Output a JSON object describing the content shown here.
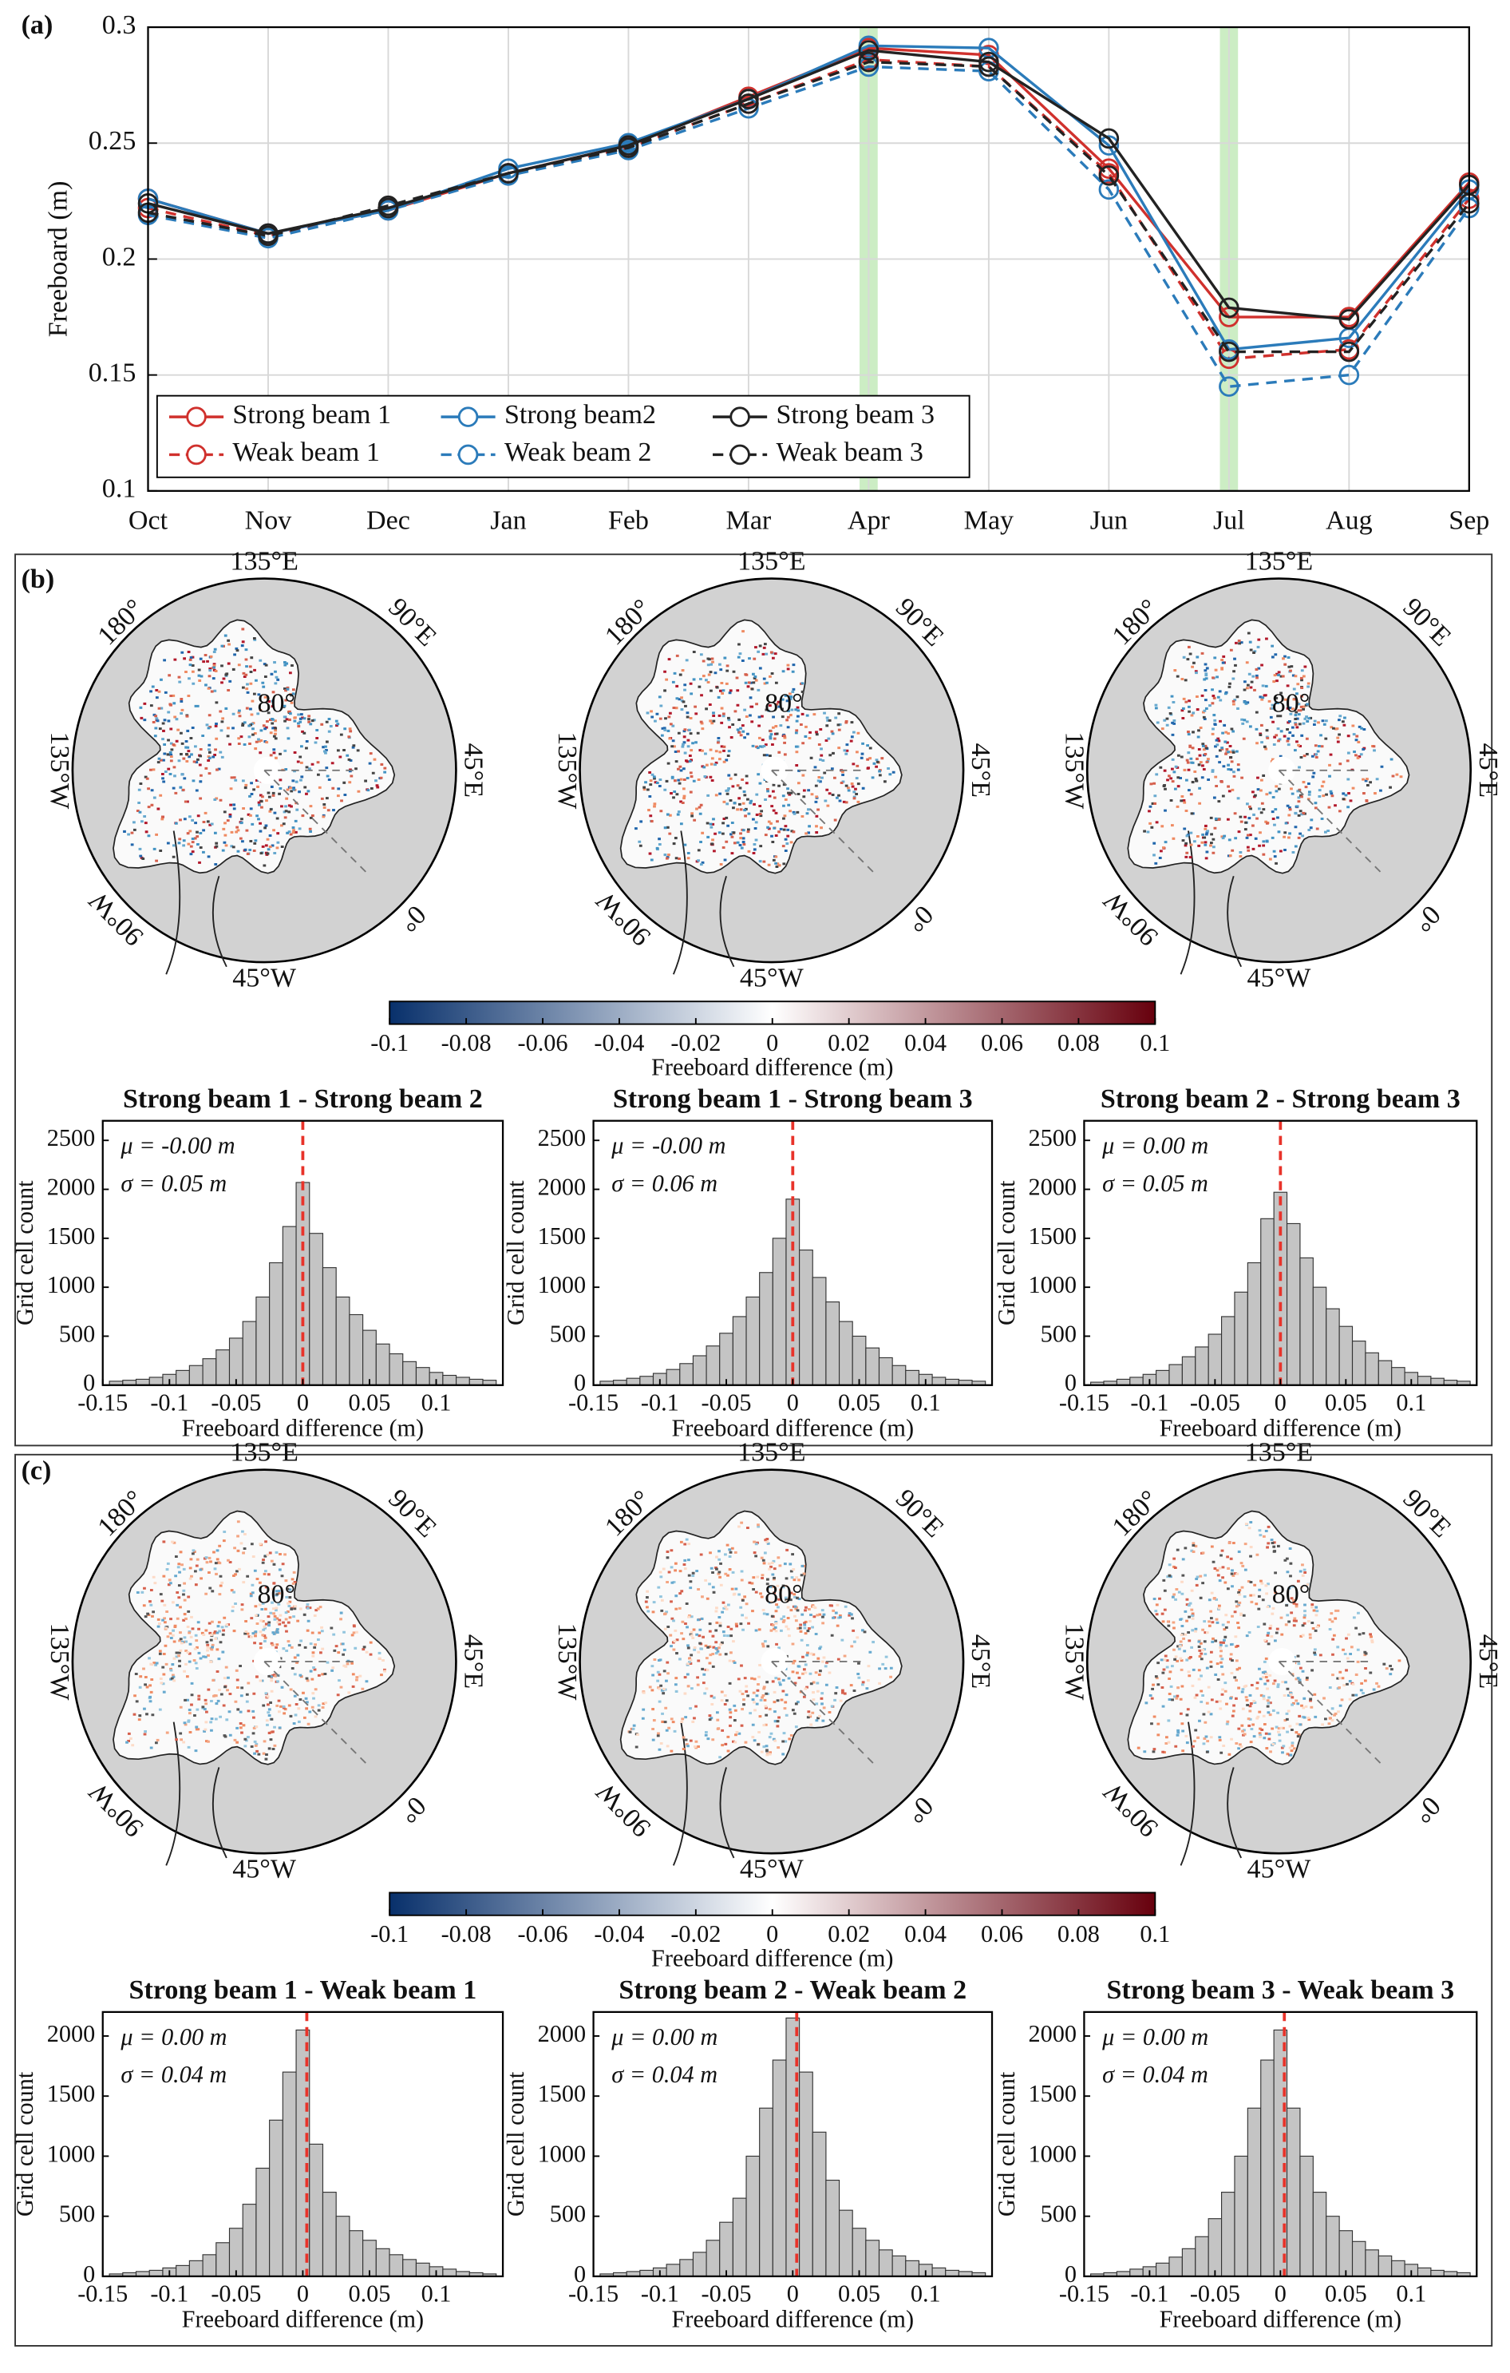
{
  "map_labels": {
    "e135": "135°E",
    "e90": "90°E",
    "e45": "45°E",
    "zero": "0°",
    "w45": "45°W",
    "w90": "90°W",
    "w135": "135°W",
    "d180": "180°",
    "lat80": "80°"
  },
  "chart_data": [
    {
      "type": "line",
      "panel_label": "(a)",
      "ylabel": "Freeboard (m)",
      "categories": [
        "Oct",
        "Nov",
        "Dec",
        "Jan",
        "Feb",
        "Mar",
        "Apr",
        "May",
        "Jun",
        "Jul",
        "Aug",
        "Sep"
      ],
      "ylim": [
        0.1,
        0.3
      ],
      "yticks": [
        0.1,
        0.15,
        0.2,
        0.25,
        0.3
      ],
      "grid": true,
      "legend": "bottom-left",
      "highlight": [
        "Apr",
        "Jul"
      ],
      "highlight_color": "#bfe8b5",
      "series": [
        {
          "name": "Strong beam 1",
          "color": "#d0312d",
          "dashed": false,
          "values": [
            0.226,
            0.211,
            0.221,
            0.237,
            0.249,
            0.27,
            0.291,
            0.288,
            0.239,
            0.175,
            0.175,
            0.233
          ]
        },
        {
          "name": "Weak beam 1",
          "color": "#d0312d",
          "dashed": true,
          "values": [
            0.222,
            0.21,
            0.222,
            0.237,
            0.248,
            0.267,
            0.286,
            0.283,
            0.237,
            0.157,
            0.161,
            0.226
          ]
        },
        {
          "name": "Strong beam2",
          "color": "#2b7bba",
          "dashed": false,
          "values": [
            0.226,
            0.211,
            0.221,
            0.239,
            0.25,
            0.269,
            0.292,
            0.291,
            0.249,
            0.161,
            0.166,
            0.23
          ]
        },
        {
          "name": "Weak beam 2",
          "color": "#2b7bba",
          "dashed": true,
          "values": [
            0.219,
            0.209,
            0.221,
            0.236,
            0.247,
            0.265,
            0.283,
            0.281,
            0.23,
            0.145,
            0.15,
            0.222
          ]
        },
        {
          "name": "Strong beam 3",
          "color": "#222222",
          "dashed": false,
          "values": [
            0.224,
            0.211,
            0.222,
            0.237,
            0.249,
            0.269,
            0.29,
            0.285,
            0.252,
            0.179,
            0.174,
            0.232
          ]
        },
        {
          "name": "Weak beam 3",
          "color": "#222222",
          "dashed": true,
          "values": [
            0.22,
            0.21,
            0.223,
            0.237,
            0.248,
            0.267,
            0.285,
            0.283,
            0.236,
            0.16,
            0.16,
            0.224
          ]
        }
      ]
    },
    {
      "type": "colorbar",
      "panel_label": "(b)",
      "xlabel": "Freeboard difference (m)",
      "xlim": [
        -0.1,
        0.1
      ],
      "xticks": [
        -0.1,
        -0.08,
        -0.06,
        -0.04,
        -0.02,
        0,
        0.02,
        0.04,
        0.06,
        0.08,
        0.1
      ],
      "colors": [
        "#08306b",
        "#ffffff",
        "#67000d"
      ]
    },
    {
      "type": "histogram",
      "title": "Strong beam 1 - Strong beam 2",
      "xlabel": "Freeboard difference (m)",
      "ylabel": "Grid cell count",
      "annotations": [
        "μ = -0.00 m",
        "σ = 0.05 m"
      ],
      "vline": 0,
      "vline_color": "#e8332a",
      "color": "#c4c4c4",
      "bins": [
        -0.145,
        -0.135,
        -0.125,
        -0.115,
        -0.105,
        -0.095,
        -0.085,
        -0.075,
        -0.065,
        -0.055,
        -0.045,
        -0.035,
        -0.025,
        -0.015,
        -0.005,
        0.005,
        0.015,
        0.025,
        0.035,
        0.045,
        0.055,
        0.065,
        0.075,
        0.085,
        0.095,
        0.105,
        0.115,
        0.125,
        0.135,
        0.145
      ],
      "counts": [
        40,
        50,
        60,
        80,
        110,
        150,
        200,
        270,
        360,
        480,
        650,
        900,
        1250,
        1620,
        2070,
        1550,
        1200,
        900,
        720,
        560,
        420,
        320,
        240,
        180,
        130,
        100,
        80,
        60,
        50
      ],
      "xlim": [
        -0.15,
        0.15
      ],
      "xticks": [
        -0.15,
        -0.1,
        -0.05,
        0,
        0.05,
        0.1
      ],
      "ylim": [
        0,
        2700
      ],
      "yticks": [
        0,
        500,
        1000,
        1500,
        2000,
        2500
      ]
    },
    {
      "type": "histogram",
      "title": "Strong beam 1 - Strong beam 3",
      "xlabel": "Freeboard difference (m)",
      "ylabel": "Grid cell count",
      "annotations": [
        "μ = -0.00 m",
        "σ = 0.06 m"
      ],
      "vline": 0,
      "vline_color": "#e8332a",
      "color": "#c4c4c4",
      "bins": [
        -0.145,
        -0.135,
        -0.125,
        -0.115,
        -0.105,
        -0.095,
        -0.085,
        -0.075,
        -0.065,
        -0.055,
        -0.045,
        -0.035,
        -0.025,
        -0.015,
        -0.005,
        0.005,
        0.015,
        0.025,
        0.035,
        0.045,
        0.055,
        0.065,
        0.075,
        0.085,
        0.095,
        0.105,
        0.115,
        0.125,
        0.135,
        0.145
      ],
      "counts": [
        40,
        50,
        70,
        90,
        120,
        160,
        220,
        300,
        400,
        530,
        700,
        900,
        1150,
        1500,
        1900,
        1380,
        1100,
        850,
        650,
        500,
        380,
        280,
        200,
        150,
        110,
        80,
        60,
        50,
        40
      ],
      "xlim": [
        -0.15,
        0.15
      ],
      "xticks": [
        -0.15,
        -0.1,
        -0.05,
        0,
        0.05,
        0.1
      ],
      "ylim": [
        0,
        2700
      ],
      "yticks": [
        0,
        500,
        1000,
        1500,
        2000,
        2500
      ]
    },
    {
      "type": "histogram",
      "title": "Strong beam 2 - Strong beam 3",
      "xlabel": "Freeboard difference (m)",
      "ylabel": "Grid cell count",
      "annotations": [
        "μ = 0.00 m",
        "σ = 0.05 m"
      ],
      "vline": 0,
      "vline_color": "#e8332a",
      "color": "#c4c4c4",
      "bins": [
        -0.145,
        -0.135,
        -0.125,
        -0.115,
        -0.105,
        -0.095,
        -0.085,
        -0.075,
        -0.065,
        -0.055,
        -0.045,
        -0.035,
        -0.025,
        -0.015,
        -0.005,
        0.005,
        0.015,
        0.025,
        0.035,
        0.045,
        0.055,
        0.065,
        0.075,
        0.085,
        0.095,
        0.105,
        0.115,
        0.125,
        0.135,
        0.145
      ],
      "counts": [
        30,
        40,
        60,
        80,
        110,
        150,
        210,
        290,
        390,
        520,
        700,
        950,
        1250,
        1700,
        1970,
        1650,
        1300,
        1000,
        780,
        600,
        450,
        330,
        250,
        180,
        130,
        90,
        70,
        50,
        40
      ],
      "xlim": [
        -0.15,
        0.15
      ],
      "xticks": [
        -0.15,
        -0.1,
        -0.05,
        0,
        0.05,
        0.1
      ],
      "ylim": [
        0,
        2700
      ],
      "yticks": [
        0,
        500,
        1000,
        1500,
        2000,
        2500
      ]
    },
    {
      "type": "colorbar",
      "panel_label": "(c)",
      "xlabel": "Freeboard difference (m)",
      "xlim": [
        -0.1,
        0.1
      ],
      "xticks": [
        -0.1,
        -0.08,
        -0.06,
        -0.04,
        -0.02,
        0,
        0.02,
        0.04,
        0.06,
        0.08,
        0.1
      ],
      "colors": [
        "#08306b",
        "#ffffff",
        "#67000d"
      ]
    },
    {
      "type": "histogram",
      "title": "Strong beam 1 - Weak beam 1",
      "xlabel": "Freeboard difference (m)",
      "ylabel": "Grid cell count",
      "annotations": [
        "μ = 0.00 m",
        "σ = 0.04 m"
      ],
      "vline": 0.003,
      "vline_color": "#e8332a",
      "color": "#c4c4c4",
      "bins": [
        -0.145,
        -0.135,
        -0.125,
        -0.115,
        -0.105,
        -0.095,
        -0.085,
        -0.075,
        -0.065,
        -0.055,
        -0.045,
        -0.035,
        -0.025,
        -0.015,
        -0.005,
        0.005,
        0.015,
        0.025,
        0.035,
        0.045,
        0.055,
        0.065,
        0.075,
        0.085,
        0.095,
        0.105,
        0.115,
        0.125,
        0.135,
        0.145
      ],
      "counts": [
        20,
        30,
        40,
        50,
        70,
        90,
        130,
        180,
        280,
        400,
        600,
        900,
        1300,
        1700,
        2050,
        1100,
        700,
        500,
        380,
        300,
        230,
        180,
        140,
        110,
        80,
        60,
        40,
        30,
        20
      ],
      "xlim": [
        -0.15,
        0.15
      ],
      "xticks": [
        -0.15,
        -0.1,
        -0.05,
        0,
        0.05,
        0.1
      ],
      "ylim": [
        0,
        2200
      ],
      "yticks": [
        0,
        500,
        1000,
        1500,
        2000
      ]
    },
    {
      "type": "histogram",
      "title": "Strong beam 2 - Weak beam 2",
      "xlabel": "Freeboard difference (m)",
      "ylabel": "Grid cell count",
      "annotations": [
        "μ = 0.00 m",
        "σ = 0.04 m"
      ],
      "vline": 0.003,
      "vline_color": "#e8332a",
      "color": "#c4c4c4",
      "bins": [
        -0.145,
        -0.135,
        -0.125,
        -0.115,
        -0.105,
        -0.095,
        -0.085,
        -0.075,
        -0.065,
        -0.055,
        -0.045,
        -0.035,
        -0.025,
        -0.015,
        -0.005,
        0.005,
        0.015,
        0.025,
        0.035,
        0.045,
        0.055,
        0.065,
        0.075,
        0.085,
        0.095,
        0.105,
        0.115,
        0.125,
        0.135,
        0.145
      ],
      "counts": [
        20,
        30,
        40,
        50,
        70,
        100,
        140,
        200,
        300,
        450,
        650,
        1000,
        1400,
        1800,
        2150,
        1700,
        1200,
        800,
        550,
        400,
        300,
        220,
        170,
        130,
        100,
        70,
        50,
        40,
        30
      ],
      "xlim": [
        -0.15,
        0.15
      ],
      "xticks": [
        -0.15,
        -0.1,
        -0.05,
        0,
        0.05,
        0.1
      ],
      "ylim": [
        0,
        2200
      ],
      "yticks": [
        0,
        500,
        1000,
        1500,
        2000
      ]
    },
    {
      "type": "histogram",
      "title": "Strong beam 3 - Weak beam 3",
      "xlabel": "Freeboard difference (m)",
      "ylabel": "Grid cell count",
      "annotations": [
        "μ = 0.00 m",
        "σ = 0.04 m"
      ],
      "vline": 0.003,
      "vline_color": "#e8332a",
      "color": "#c4c4c4",
      "bins": [
        -0.145,
        -0.135,
        -0.125,
        -0.115,
        -0.105,
        -0.095,
        -0.085,
        -0.075,
        -0.065,
        -0.055,
        -0.045,
        -0.035,
        -0.025,
        -0.015,
        -0.005,
        0.005,
        0.015,
        0.025,
        0.035,
        0.045,
        0.055,
        0.065,
        0.075,
        0.085,
        0.095,
        0.105,
        0.115,
        0.125,
        0.135,
        0.145
      ],
      "counts": [
        20,
        30,
        40,
        60,
        80,
        110,
        160,
        230,
        330,
        480,
        700,
        1000,
        1400,
        1800,
        2050,
        1400,
        1000,
        700,
        500,
        380,
        290,
        220,
        170,
        130,
        100,
        70,
        50,
        40,
        30
      ],
      "xlim": [
        -0.15,
        0.15
      ],
      "xticks": [
        -0.15,
        -0.1,
        -0.05,
        0,
        0.05,
        0.1
      ],
      "ylim": [
        0,
        2200
      ],
      "yticks": [
        0,
        500,
        1000,
        1500,
        2000
      ]
    }
  ]
}
